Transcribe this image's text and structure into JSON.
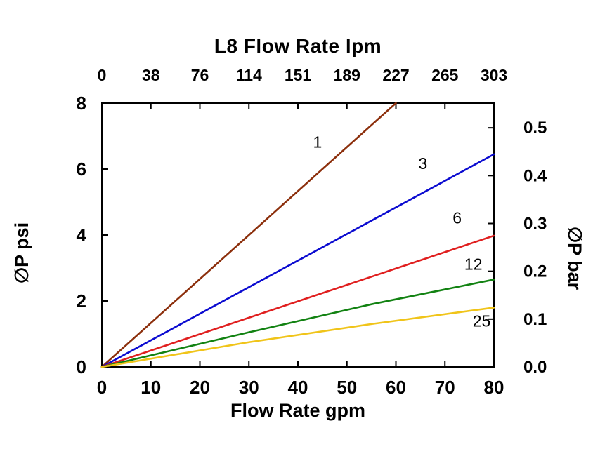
{
  "chart_data": {
    "type": "line",
    "title": "L8 Flow Rate lpm",
    "xlabel": "Flow Rate gpm",
    "ylabel_left": "∅P psi",
    "ylabel_right": "∅P bar",
    "xlim": [
      0,
      80
    ],
    "ylim": [
      0,
      8
    ],
    "grid": false,
    "legend": "inline-labels",
    "x_bottom_ticks": [
      0,
      10,
      20,
      30,
      40,
      50,
      60,
      70,
      80
    ],
    "x_top_ticks": [
      {
        "label": "0",
        "x_gpm": 0
      },
      {
        "label": "38",
        "x_gpm": 10
      },
      {
        "label": "76",
        "x_gpm": 20
      },
      {
        "label": "114",
        "x_gpm": 30
      },
      {
        "label": "151",
        "x_gpm": 40
      },
      {
        "label": "189",
        "x_gpm": 50
      },
      {
        "label": "227",
        "x_gpm": 60
      },
      {
        "label": "265",
        "x_gpm": 70
      },
      {
        "label": "303",
        "x_gpm": 80
      }
    ],
    "y_left_ticks": [
      0,
      2,
      4,
      6,
      8
    ],
    "y_right_ticks": [
      {
        "label": "0.0",
        "bar": 0.0
      },
      {
        "label": "0.1",
        "bar": 0.1
      },
      {
        "label": "0.2",
        "bar": 0.2
      },
      {
        "label": "0.3",
        "bar": 0.3
      },
      {
        "label": "0.4",
        "bar": 0.4
      },
      {
        "label": "0.5",
        "bar": 0.5
      }
    ],
    "psi_per_bar": 14.5038,
    "series": [
      {
        "name": "1",
        "color": "#8C2F0C",
        "x": [
          0,
          60
        ],
        "y": [
          0,
          8
        ],
        "label_x": 44.0,
        "label_y": 6.65
      },
      {
        "name": "3",
        "color": "#0B0BD0",
        "x": [
          0,
          80
        ],
        "y": [
          0,
          6.45
        ],
        "label_x": 65.5,
        "label_y": 6.0
      },
      {
        "name": "6",
        "color": "#E01F1F",
        "x": [
          0,
          80
        ],
        "y": [
          0,
          3.98
        ],
        "label_x": 72.5,
        "label_y": 4.35
      },
      {
        "name": "12",
        "color": "#128212",
        "x": [
          0,
          30,
          55,
          80
        ],
        "y": [
          0,
          1.05,
          1.9,
          2.65
        ],
        "label_x": 75.8,
        "label_y": 2.95
      },
      {
        "name": "25",
        "color": "#F0C419",
        "x": [
          0,
          30,
          55,
          80
        ],
        "y": [
          0,
          0.75,
          1.3,
          1.8
        ],
        "label_x": 77.5,
        "label_y": 1.22
      }
    ]
  }
}
